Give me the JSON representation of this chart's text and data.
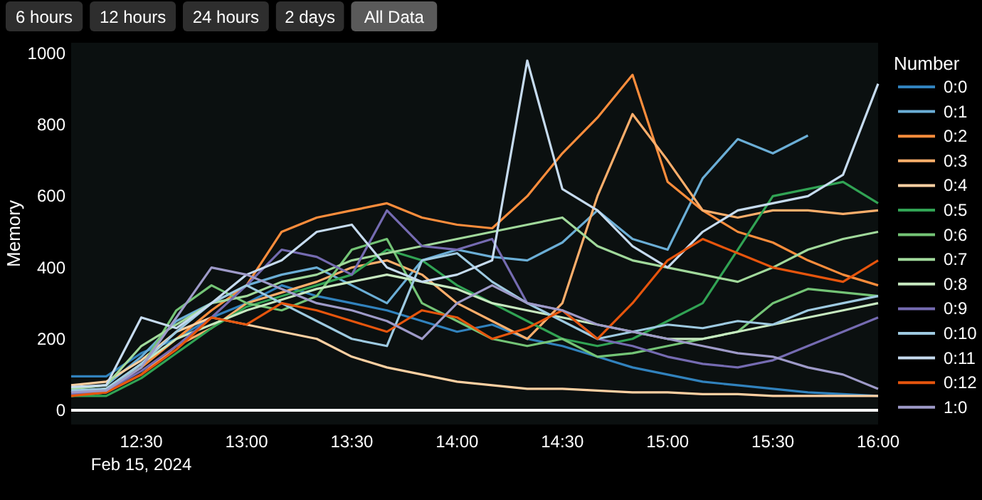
{
  "chart_data": {
    "type": "line",
    "ylabel": "Memory",
    "legend_title": "Number",
    "legend": "right",
    "grid": false,
    "line_style": "solid",
    "ref_lines": [
      {
        "axis": "y",
        "value": 0,
        "color": "#ffffff"
      }
    ],
    "annotations": [
      "6 hours",
      "12 hours",
      "24 hours",
      "2 days",
      "All Data"
    ],
    "x": [
      "2024-02-15T12:10",
      "2024-02-15T12:20",
      "2024-02-15T12:30",
      "2024-02-15T12:40",
      "2024-02-15T12:50",
      "2024-02-15T13:00",
      "2024-02-15T13:10",
      "2024-02-15T13:20",
      "2024-02-15T13:30",
      "2024-02-15T13:40",
      "2024-02-15T13:50",
      "2024-02-15T14:00",
      "2024-02-15T14:10",
      "2024-02-15T14:20",
      "2024-02-15T14:30",
      "2024-02-15T14:40",
      "2024-02-15T14:50",
      "2024-02-15T15:00",
      "2024-02-15T15:10",
      "2024-02-15T15:20",
      "2024-02-15T15:30",
      "2024-02-15T15:40",
      "2024-02-15T15:50",
      "2024-02-15T16:00"
    ],
    "xlim": [
      "2024-02-15T12:10",
      "2024-02-15T16:00"
    ],
    "xticks": [
      {
        "value": "2024-02-15T12:30",
        "label": "12:30\nFeb 15, 2024"
      },
      {
        "value": "2024-02-15T13:00",
        "label": "13:00"
      },
      {
        "value": "2024-02-15T13:30",
        "label": "13:30"
      },
      {
        "value": "2024-02-15T14:00",
        "label": "14:00"
      },
      {
        "value": "2024-02-15T14:30",
        "label": "14:30"
      },
      {
        "value": "2024-02-15T15:00",
        "label": "15:00"
      },
      {
        "value": "2024-02-15T15:30",
        "label": "15:30"
      },
      {
        "value": "2024-02-15T16:00",
        "label": "16:00"
      }
    ],
    "ylim": [
      -40,
      1030
    ],
    "yticks": [
      0,
      200,
      400,
      600,
      800,
      1000
    ],
    "series": [
      {
        "name": "0:0",
        "color": "#3182bd",
        "values": [
          95,
          95,
          160,
          200,
          260,
          300,
          350,
          320,
          300,
          280,
          250,
          220,
          240,
          200,
          180,
          150,
          120,
          100,
          80,
          70,
          60,
          50,
          45,
          40
        ]
      },
      {
        "name": "0:1",
        "color": "#6baed6",
        "values": [
          60,
          70,
          150,
          250,
          300,
          350,
          380,
          400,
          350,
          300,
          420,
          450,
          430,
          420,
          470,
          560,
          480,
          450,
          650,
          760,
          720,
          770,
          null,
          null
        ]
      },
      {
        "name": "0:2",
        "color": "#fd8d3c",
        "values": [
          50,
          60,
          120,
          200,
          280,
          350,
          500,
          540,
          560,
          580,
          540,
          520,
          510,
          600,
          720,
          820,
          940,
          640,
          560,
          500,
          470,
          420,
          380,
          350
        ]
      },
      {
        "name": "0:3",
        "color": "#fdae6b",
        "values": [
          40,
          50,
          100,
          180,
          230,
          300,
          330,
          360,
          400,
          420,
          380,
          300,
          250,
          200,
          300,
          600,
          830,
          700,
          560,
          540,
          560,
          560,
          550,
          560
        ]
      },
      {
        "name": "0:4",
        "color": "#fdd0a2",
        "values": [
          70,
          80,
          140,
          220,
          260,
          240,
          220,
          200,
          150,
          120,
          100,
          80,
          70,
          60,
          60,
          55,
          50,
          50,
          45,
          45,
          40,
          40,
          40,
          40
        ]
      },
      {
        "name": "0:5",
        "color": "#31a354",
        "values": [
          40,
          40,
          90,
          160,
          230,
          290,
          320,
          350,
          380,
          450,
          420,
          350,
          300,
          250,
          200,
          180,
          200,
          250,
          300,
          450,
          600,
          620,
          640,
          580
        ]
      },
      {
        "name": "0:6",
        "color": "#74c476",
        "values": [
          50,
          60,
          120,
          280,
          350,
          300,
          280,
          320,
          450,
          480,
          300,
          250,
          200,
          180,
          200,
          150,
          160,
          180,
          200,
          220,
          300,
          340,
          330,
          320
        ]
      },
      {
        "name": "0:7",
        "color": "#a1d99b",
        "values": [
          60,
          70,
          180,
          240,
          300,
          320,
          360,
          380,
          420,
          440,
          460,
          480,
          500,
          520,
          540,
          460,
          420,
          400,
          380,
          360,
          400,
          450,
          480,
          500
        ]
      },
      {
        "name": "0:8",
        "color": "#c7e9c0",
        "values": [
          50,
          60,
          130,
          200,
          240,
          280,
          310,
          340,
          360,
          380,
          360,
          340,
          300,
          280,
          260,
          240,
          220,
          200,
          200,
          220,
          240,
          260,
          280,
          300
        ]
      },
      {
        "name": "0:9",
        "color": "#756bb1",
        "values": [
          45,
          55,
          110,
          180,
          260,
          350,
          450,
          430,
          380,
          560,
          460,
          450,
          480,
          300,
          280,
          200,
          180,
          150,
          130,
          120,
          140,
          180,
          220,
          260
        ]
      },
      {
        "name": "0:10",
        "color": "#9ecae1",
        "values": [
          55,
          60,
          130,
          220,
          300,
          350,
          300,
          250,
          200,
          180,
          420,
          440,
          360,
          300,
          250,
          200,
          220,
          240,
          230,
          250,
          240,
          280,
          300,
          320
        ]
      },
      {
        "name": "0:11",
        "color": "#c6dbef",
        "values": [
          65,
          70,
          260,
          230,
          300,
          380,
          420,
          500,
          520,
          400,
          360,
          380,
          420,
          980,
          620,
          560,
          460,
          400,
          500,
          560,
          580,
          600,
          660,
          915
        ]
      },
      {
        "name": "0:12",
        "color": "#e6550d",
        "values": [
          40,
          50,
          100,
          170,
          260,
          240,
          300,
          280,
          250,
          220,
          280,
          260,
          200,
          230,
          280,
          200,
          300,
          420,
          480,
          440,
          400,
          380,
          360,
          420
        ]
      },
      {
        "name": "1:0",
        "color": "#9e9ac8",
        "values": [
          50,
          55,
          120,
          260,
          400,
          380,
          340,
          300,
          280,
          250,
          200,
          300,
          350,
          300,
          280,
          240,
          220,
          200,
          180,
          160,
          150,
          120,
          100,
          60
        ]
      }
    ]
  }
}
